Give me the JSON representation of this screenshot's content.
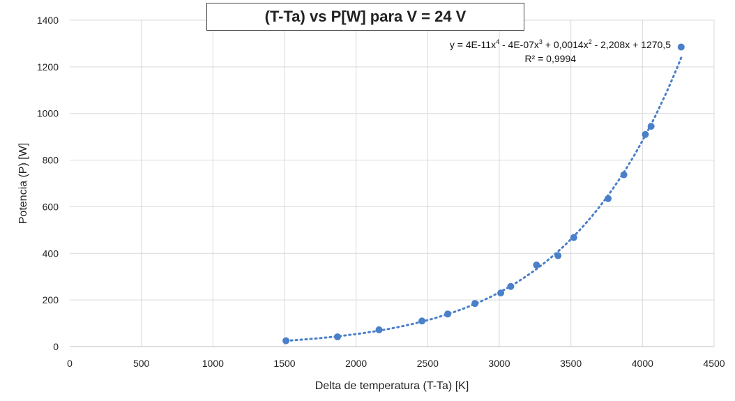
{
  "chart_data": {
    "type": "scatter",
    "title": "(T-Ta) vs P[W] para V = 24 V",
    "xlabel": "Delta de temperatura (T-Ta) [K]",
    "ylabel": "Potencia (P) [W]",
    "xlim": [
      0,
      4500
    ],
    "ylim": [
      0,
      1400
    ],
    "x_ticks": [
      0,
      500,
      1000,
      1500,
      2000,
      2500,
      3000,
      3500,
      4000,
      4500
    ],
    "y_ticks": [
      0,
      200,
      400,
      600,
      800,
      1000,
      1200,
      1400
    ],
    "x_tick_labels": [
      "0",
      "500",
      "1000",
      "1500",
      "2000",
      "2500",
      "3000",
      "3500",
      "4000",
      "4500"
    ],
    "y_tick_labels": [
      "0",
      "200",
      "400",
      "600",
      "800",
      "1000",
      "1200",
      "1400"
    ],
    "grid": true,
    "legend": "none",
    "point_color": "#4a7fc9",
    "series": [
      {
        "x": [
          1510,
          1870,
          2160,
          2460,
          2640,
          2830,
          3010,
          3080,
          3260,
          3410,
          3520,
          3760,
          3870,
          4020,
          4060,
          4270
        ],
        "y": [
          25,
          42,
          72,
          110,
          140,
          185,
          230,
          258,
          350,
          390,
          468,
          635,
          737,
          910,
          945,
          1285
        ]
      }
    ],
    "trendline": {
      "type": "polynomial",
      "order": 4,
      "x_range": [
        1510,
        4270
      ],
      "equation": {
        "y_prefix": "y = 4E-11x",
        "exp4": "4",
        "part2": " - 4E-07x",
        "exp3": "3",
        "part3": " + 0,0014x",
        "exp2": "2",
        "part4": " - 2,208x + 1270,5"
      },
      "r2": "R² = 0,9994"
    }
  }
}
